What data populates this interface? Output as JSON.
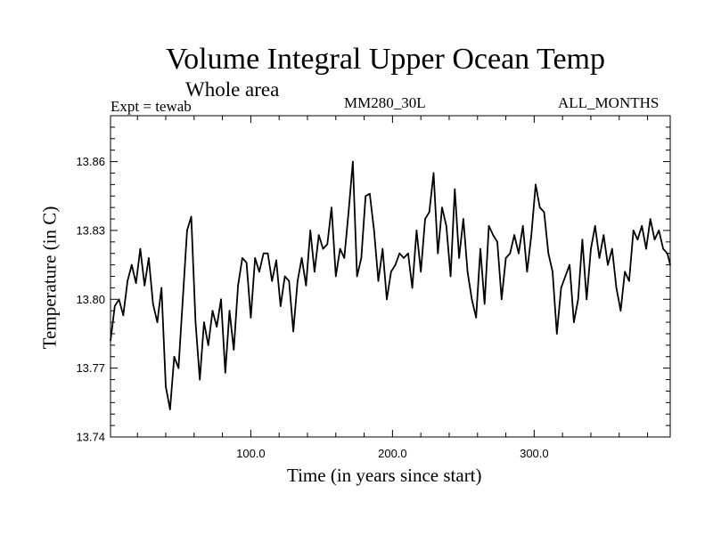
{
  "header": {
    "title": "Volume Integral Upper Ocean Temp",
    "subtitle": "Whole area",
    "experiment": "Expt = tewab",
    "model": "MM280_30L",
    "period": "ALL_MONTHS"
  },
  "chart_data": {
    "type": "line",
    "xlabel": "Time (in years since start)",
    "ylabel": "Temperature (in C)",
    "xlim": [
      1,
      396
    ],
    "ylim": [
      13.74,
      13.88
    ],
    "x_ticks": [
      100,
      200,
      300
    ],
    "x_tick_labels": [
      "100.0",
      "200.0",
      "300.0"
    ],
    "y_ticks": [
      13.74,
      13.77,
      13.8,
      13.83,
      13.86
    ],
    "y_tick_labels": [
      "13.74",
      "13.77",
      "13.80",
      "13.83",
      "13.86"
    ],
    "grid": false,
    "series": [
      {
        "x": [
          1,
          4,
          7,
          10,
          13,
          16,
          19,
          22,
          25,
          28,
          31,
          34,
          37,
          40,
          43,
          46,
          49,
          52,
          55,
          58,
          61,
          64,
          67,
          70,
          73,
          76,
          79,
          82,
          85,
          88,
          91,
          94,
          97,
          100,
          103,
          106,
          109,
          112,
          115,
          118,
          121,
          124,
          127,
          130,
          133,
          136,
          139,
          142,
          145,
          148,
          151,
          154,
          157,
          160,
          163,
          166,
          169,
          172,
          175,
          178,
          181,
          184,
          187,
          190,
          193,
          196,
          199,
          202,
          205,
          208,
          211,
          214,
          217,
          220,
          223,
          226,
          229,
          232,
          235,
          238,
          241,
          244,
          247,
          250,
          253,
          256,
          259,
          262,
          265,
          268,
          271,
          274,
          277,
          280,
          283,
          286,
          289,
          292,
          295,
          298,
          301,
          304,
          307,
          310,
          313,
          316,
          319,
          322,
          325,
          328,
          331,
          334,
          337,
          340,
          343,
          346,
          349,
          352,
          355,
          358,
          361,
          364,
          367,
          370,
          373,
          376,
          379,
          382,
          385,
          388,
          391,
          394,
          396
        ],
        "values": [
          13.782,
          13.797,
          13.8,
          13.793,
          13.808,
          13.815,
          13.807,
          13.822,
          13.806,
          13.818,
          13.798,
          13.79,
          13.805,
          13.762,
          13.752,
          13.775,
          13.77,
          13.8,
          13.83,
          13.836,
          13.79,
          13.765,
          13.79,
          13.78,
          13.795,
          13.788,
          13.8,
          13.768,
          13.795,
          13.778,
          13.806,
          13.818,
          13.816,
          13.792,
          13.818,
          13.812,
          13.82,
          13.82,
          13.808,
          13.817,
          13.797,
          13.81,
          13.808,
          13.786,
          13.808,
          13.818,
          13.806,
          13.83,
          13.812,
          13.828,
          13.822,
          13.824,
          13.84,
          13.81,
          13.822,
          13.818,
          13.838,
          13.86,
          13.81,
          13.818,
          13.845,
          13.846,
          13.83,
          13.808,
          13.822,
          13.8,
          13.812,
          13.815,
          13.82,
          13.818,
          13.82,
          13.805,
          13.83,
          13.812,
          13.835,
          13.838,
          13.855,
          13.82,
          13.84,
          13.832,
          13.81,
          13.848,
          13.818,
          13.835,
          13.812,
          13.8,
          13.792,
          13.822,
          13.798,
          13.832,
          13.828,
          13.825,
          13.8,
          13.818,
          13.82,
          13.828,
          13.82,
          13.832,
          13.812,
          13.828,
          13.85,
          13.84,
          13.838,
          13.82,
          13.812,
          13.785,
          13.805,
          13.81,
          13.815,
          13.79,
          13.8,
          13.826,
          13.8,
          13.822,
          13.832,
          13.818,
          13.828,
          13.815,
          13.822,
          13.805,
          13.795,
          13.812,
          13.808,
          13.83,
          13.826,
          13.832,
          13.822,
          13.835,
          13.826,
          13.83,
          13.822,
          13.82,
          13.815
        ]
      }
    ]
  }
}
